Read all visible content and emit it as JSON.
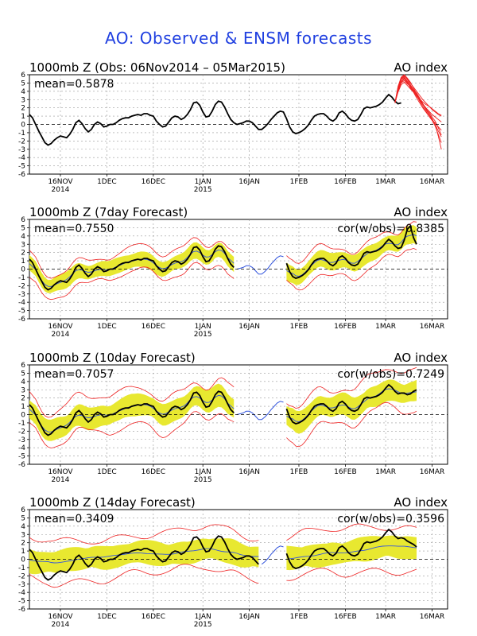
{
  "page": {
    "title": "AO: Observed & ENSM forecasts"
  },
  "colors": {
    "observed": "#000000",
    "forecast_mean": "#3355dd",
    "spread": "#e8e830",
    "members": "#ee2222",
    "zero_line": "#000000",
    "grid": "#999999",
    "title": "#1f3fe0"
  },
  "chart_data": [
    {
      "type": "line",
      "title": "1000mb Z (Obs: 06Nov2014 – 05Mar2015)",
      "right_label": "AO index",
      "mean_label": "mean=0.5878",
      "cor_label": "",
      "ylim": [
        -6,
        6
      ],
      "yticks": [
        6,
        5,
        4,
        3,
        2,
        1,
        0,
        -1,
        -2,
        -3,
        -4,
        -5,
        -6
      ],
      "xlim_days": [
        0,
        135
      ],
      "xticks": [
        {
          "day": 10,
          "label": "16NOV",
          "year": "2014"
        },
        {
          "day": 25,
          "label": "1DEC",
          "year": ""
        },
        {
          "day": 40,
          "label": "16DEC",
          "year": ""
        },
        {
          "day": 56,
          "label": "1JAN",
          "year": "2015"
        },
        {
          "day": 71,
          "label": "16JAN",
          "year": ""
        },
        {
          "day": 87,
          "label": "1FEB",
          "year": ""
        },
        {
          "day": 102,
          "label": "16FEB",
          "year": ""
        },
        {
          "day": 115,
          "label": "1MAR",
          "year": ""
        },
        {
          "day": 130,
          "label": "16MAR",
          "year": ""
        }
      ],
      "observed": {
        "start_day": 0,
        "values": [
          1.2,
          0.8,
          0,
          -0.8,
          -1.5,
          -2.2,
          -2.5,
          -2.3,
          -1.9,
          -1.6,
          -1.4,
          -1.5,
          -1.6,
          -1.2,
          -0.6,
          0.2,
          0.5,
          0.1,
          -0.5,
          -0.9,
          -0.6,
          0,
          0.3,
          0.1,
          -0.3,
          -0.2,
          0,
          0,
          0.2,
          0.5,
          0.7,
          0.8,
          0.8,
          1,
          1.1,
          1.2,
          1.1,
          1.3,
          1.3,
          1.1,
          1,
          0.4,
          0,
          -0.3,
          -0.2,
          0.3,
          0.8,
          1,
          0.9,
          0.6,
          0.8,
          1.2,
          1.8,
          2.6,
          2.7,
          2.3,
          1.5,
          0.9,
          1,
          1.6,
          2.4,
          2.8,
          2.7,
          2.1,
          1.3,
          0.6,
          0.2,
          0,
          0.1,
          0.2,
          0.4,
          0.4,
          0.2,
          -0.2,
          -0.6,
          -0.6,
          -0.3,
          0.1,
          0.6,
          1,
          1.4,
          1.6,
          1.5,
          0.7,
          -0.3,
          -0.9,
          -1.1,
          -1,
          -0.8,
          -0.5,
          -0.1,
          0.5,
          1,
          1.2,
          1.3,
          1.3,
          1,
          0.6,
          0.4,
          0.7,
          1.4,
          1.6,
          1.3,
          0.8,
          0.5,
          0.4,
          0.6,
          1.2,
          1.9,
          2.1,
          2,
          2.1,
          2.2,
          2.4,
          2.7,
          3.2,
          3.6,
          3.3,
          2.8,
          2.5,
          2.6
        ],
        "member_start_day": 118,
        "members": [
          [
            2.6,
            4.5,
            5.5,
            5.8,
            5.5,
            5,
            4.5,
            4,
            3.5,
            3,
            2.6,
            2.2,
            1.8,
            1.5,
            1.2,
            1
          ],
          [
            2.6,
            4.2,
            5.2,
            5.6,
            5.1,
            4.4,
            3.9,
            3.2,
            2.6,
            2,
            1.5,
            1,
            0.5,
            0.2,
            -0.3,
            -0.7
          ],
          [
            2.6,
            4,
            5,
            5.3,
            4.9,
            4.6,
            4.2,
            3.8,
            3.2,
            2.5,
            1.8,
            1.2,
            0.6,
            0,
            -0.8,
            -1.5
          ],
          [
            2.6,
            4.4,
            5.6,
            5.9,
            5.4,
            4.8,
            4.2,
            3.5,
            2.8,
            2.2,
            1.6,
            1,
            0.5,
            -0.2,
            -1.2,
            -2.2
          ],
          [
            2.6,
            3.9,
            4.8,
            5.1,
            4.7,
            4.3,
            3.9,
            3.5,
            3.1,
            2.7,
            2.4,
            2.2,
            1.9,
            1.6,
            1.3,
            1.1
          ],
          [
            2.6,
            4.3,
            5.4,
            5.7,
            5.2,
            4.7,
            4.1,
            3.6,
            3,
            2.5,
            2,
            1.5,
            0.9,
            0.4,
            -0.4,
            -1.3
          ],
          [
            2.6,
            4.1,
            5.1,
            5.5,
            5,
            4.5,
            4,
            3.4,
            2.9,
            2.4,
            2,
            1.6,
            1.2,
            0.9,
            0.6,
            0.3
          ],
          [
            2.6,
            4.6,
            5.7,
            6,
            5.6,
            5.1,
            4.4,
            3.7,
            3,
            2.4,
            1.9,
            1.3,
            0.7,
            0,
            -1.4,
            -3
          ]
        ]
      }
    },
    {
      "type": "line",
      "title": "1000mb Z (7day Forecast)",
      "right_label": "AO index",
      "mean_label": "mean=0.7550",
      "cor_label": "cor(w/obs)=0.8385",
      "ylim": [
        -6,
        6
      ],
      "yticks": [
        6,
        5,
        4,
        3,
        2,
        1,
        0,
        -1,
        -2,
        -3,
        -4,
        -5,
        -6
      ],
      "xlim_days": [
        0,
        135
      ],
      "xticks": [
        {
          "day": 10,
          "label": "16NOV",
          "year": "2014"
        },
        {
          "day": 25,
          "label": "1DEC",
          "year": ""
        },
        {
          "day": 40,
          "label": "16DEC",
          "year": ""
        },
        {
          "day": 56,
          "label": "1JAN",
          "year": "2015"
        },
        {
          "day": 71,
          "label": "16JAN",
          "year": ""
        },
        {
          "day": 87,
          "label": "1FEB",
          "year": ""
        },
        {
          "day": 102,
          "label": "16FEB",
          "year": ""
        },
        {
          "day": 115,
          "label": "1MAR",
          "year": ""
        },
        {
          "day": 130,
          "label": "16MAR",
          "year": ""
        }
      ],
      "segments": [
        {
          "start_day": 0,
          "observed": [
            1.2,
            0.8,
            0,
            -0.8,
            -1.5,
            -2.2,
            -2.5,
            -2.3,
            -1.9,
            -1.6,
            -1.4,
            -1.5,
            -1.6,
            -1.2,
            -0.6,
            0.2,
            0.5,
            0.1,
            -0.5,
            -0.9,
            -0.6,
            0,
            0.3,
            0.1,
            -0.3,
            -0.2,
            0,
            0,
            0.2,
            0.5,
            0.7,
            0.8,
            0.8,
            1,
            1.1,
            1.2,
            1.1,
            1.3,
            1.3,
            1.1,
            1,
            0.4,
            0,
            -0.3,
            -0.2,
            0.3,
            0.8,
            1,
            0.9,
            0.6,
            0.8,
            1.2,
            1.8,
            2.6,
            2.7,
            2.3,
            1.5,
            0.9,
            1,
            1.6,
            2.4,
            2.8,
            2.7,
            2.1,
            1.3,
            0.6,
            0.2
          ],
          "spread": 1.0,
          "member_spread": 1.8
        },
        {
          "start_day": 67,
          "observed": [
            0,
            0.1,
            0.2,
            0.4,
            0.4,
            0.2,
            -0.2,
            -0.6,
            -0.6,
            -0.3,
            0.1,
            0.6,
            1,
            1.4,
            1.6,
            1.5
          ],
          "spread": 0,
          "member_spread": 0,
          "dashed": true
        },
        {
          "start_day": 83,
          "observed": [
            0.7,
            -0.3,
            -0.9,
            -1.1,
            -1,
            -0.8,
            -0.5,
            -0.1,
            0.5,
            1,
            1.2,
            1.3,
            1.3,
            1,
            0.6,
            0.4,
            0.7,
            1.4,
            1.6,
            1.3,
            0.8,
            0.5,
            0.4,
            0.6,
            1.2,
            1.9,
            2.1,
            2,
            2.1,
            2.2,
            2.4,
            2.7,
            3.2,
            3.6,
            3.3,
            2.8,
            2.5,
            2.6,
            3.5,
            4.8,
            5.2,
            3.8,
            3
          ],
          "spread": 1.1,
          "member_spread": 2.0
        }
      ]
    },
    {
      "type": "line",
      "title": "1000mb Z (10day Forecast)",
      "right_label": "AO index",
      "mean_label": "mean=0.7057",
      "cor_label": "cor(w/obs)=0.7249",
      "ylim": [
        -6,
        6
      ],
      "yticks": [
        6,
        5,
        4,
        3,
        2,
        1,
        0,
        -1,
        -2,
        -3,
        -4,
        -5,
        -6
      ],
      "xlim_days": [
        0,
        135
      ],
      "xticks": [
        {
          "day": 10,
          "label": "16NOV",
          "year": "2014"
        },
        {
          "day": 25,
          "label": "1DEC",
          "year": ""
        },
        {
          "day": 40,
          "label": "16DEC",
          "year": ""
        },
        {
          "day": 56,
          "label": "1JAN",
          "year": "2015"
        },
        {
          "day": 71,
          "label": "16JAN",
          "year": ""
        },
        {
          "day": 87,
          "label": "1FEB",
          "year": ""
        },
        {
          "day": 102,
          "label": "16FEB",
          "year": ""
        },
        {
          "day": 115,
          "label": "1MAR",
          "year": ""
        },
        {
          "day": 130,
          "label": "16MAR",
          "year": ""
        }
      ],
      "segments": [
        {
          "start_day": 0,
          "observed": [
            1.2,
            0.8,
            0,
            -0.8,
            -1.5,
            -2.2,
            -2.5,
            -2.3,
            -1.9,
            -1.6,
            -1.4,
            -1.5,
            -1.6,
            -1.2,
            -0.6,
            0.2,
            0.5,
            0.1,
            -0.5,
            -0.9,
            -0.6,
            0,
            0.3,
            0.1,
            -0.3,
            -0.2,
            0,
            0,
            0.2,
            0.5,
            0.7,
            0.8,
            0.8,
            1,
            1.1,
            1.2,
            1.1,
            1.3,
            1.3,
            1.1,
            1,
            0.4,
            0,
            -0.3,
            -0.2,
            0.3,
            0.8,
            1,
            0.9,
            0.6,
            0.8,
            1.2,
            1.8,
            2.6,
            2.7,
            2.3,
            1.5,
            0.9,
            1,
            1.6,
            2.4,
            2.8,
            2.7,
            2.1,
            1.3,
            0.6,
            0.2
          ],
          "spread": 1.4,
          "member_spread": 2.6
        },
        {
          "start_day": 67,
          "observed": [
            0,
            0.1,
            0.2,
            0.4,
            0.4,
            0.2,
            -0.2,
            -0.6,
            -0.6,
            -0.3,
            0.1,
            0.6,
            1,
            1.4,
            1.6,
            1.5
          ],
          "spread": 0,
          "member_spread": 0,
          "dashed": true
        },
        {
          "start_day": 83,
          "observed": [
            0.7,
            -0.3,
            -0.9,
            -1.1,
            -1,
            -0.8,
            -0.5,
            -0.1,
            0.5,
            1,
            1.2,
            1.3,
            1.3,
            1,
            0.6,
            0.4,
            0.7,
            1.4,
            1.6,
            1.3,
            0.8,
            0.5,
            0.4,
            0.6,
            1.2,
            1.9,
            2.1,
            2,
            2.1,
            2.2,
            2.4,
            2.7,
            3.2,
            3.6,
            3.3,
            2.8,
            2.5,
            2.6,
            2.6,
            2.4,
            2.5,
            2.8,
            3
          ],
          "spread": 1.4,
          "member_spread": 2.8
        }
      ]
    },
    {
      "type": "line",
      "title": "1000mb Z (14day Forecast)",
      "right_label": "AO index",
      "mean_label": "mean=0.3409",
      "cor_label": "cor(w/obs)=0.3596",
      "ylim": [
        -6,
        6
      ],
      "yticks": [
        6,
        5,
        4,
        3,
        2,
        1,
        0,
        -1,
        -2,
        -3,
        -4,
        -5,
        -6
      ],
      "xlim_days": [
        0,
        135
      ],
      "xticks": [
        {
          "day": 10,
          "label": "16NOV",
          "year": "2014"
        },
        {
          "day": 25,
          "label": "1DEC",
          "year": ""
        },
        {
          "day": 40,
          "label": "16DEC",
          "year": ""
        },
        {
          "day": 56,
          "label": "1JAN",
          "year": "2015"
        },
        {
          "day": 71,
          "label": "16JAN",
          "year": ""
        },
        {
          "day": 87,
          "label": "1FEB",
          "year": ""
        },
        {
          "day": 102,
          "label": "16FEB",
          "year": ""
        },
        {
          "day": 115,
          "label": "1MAR",
          "year": ""
        },
        {
          "day": 130,
          "label": "16MAR",
          "year": ""
        }
      ],
      "segments": [
        {
          "start_day": 0,
          "observed": [
            1.2,
            0.8,
            0,
            -0.8,
            -1.5,
            -2.2,
            -2.5,
            -2.3,
            -1.9,
            -1.6,
            -1.4,
            -1.5,
            -1.6,
            -1.2,
            -0.6,
            0.2,
            0.5,
            0.1,
            -0.5,
            -0.9,
            -0.6,
            0,
            0.3,
            0.1,
            -0.3,
            -0.2,
            0,
            0,
            0.2,
            0.5,
            0.7,
            0.8,
            0.8,
            1,
            1.1,
            1.2,
            1.1,
            1.3,
            1.3,
            1.1,
            1,
            0.4,
            0,
            -0.3,
            -0.2,
            0.3,
            0.8,
            1,
            0.9,
            0.6,
            0.8,
            1.2,
            1.8,
            2.6,
            2.7,
            2.3,
            1.5,
            0.9,
            1,
            1.6,
            2.4,
            2.8,
            2.7,
            2.1,
            1.3,
            0.6,
            0.2,
            0,
            0.1,
            0.2,
            0.4,
            0.4,
            0.2,
            -0.2,
            -0.6
          ],
          "spread": 1.5,
          "member_spread": 3.0,
          "mean_flat": true
        },
        {
          "start_day": 75,
          "observed": [
            -0.6,
            -0.3,
            0.1,
            0.6,
            1,
            1.4,
            1.6,
            1.5
          ],
          "spread": 0,
          "member_spread": 0,
          "dashed": true
        },
        {
          "start_day": 83,
          "observed": [
            0.7,
            -0.3,
            -0.9,
            -1.1,
            -1,
            -0.8,
            -0.5,
            -0.1,
            0.5,
            1,
            1.2,
            1.3,
            1.3,
            1,
            0.6,
            0.4,
            0.7,
            1.4,
            1.6,
            1.3,
            0.8,
            0.5,
            0.4,
            0.6,
            1.2,
            1.9,
            2.1,
            2,
            2.1,
            2.2,
            2.4,
            2.7,
            3.2,
            3.6,
            3.3,
            2.8,
            2.5,
            2.6,
            2.5,
            2.2,
            2,
            1.8,
            1.5
          ],
          "spread": 1.5,
          "member_spread": 3.2,
          "mean_flat": true
        }
      ]
    }
  ]
}
